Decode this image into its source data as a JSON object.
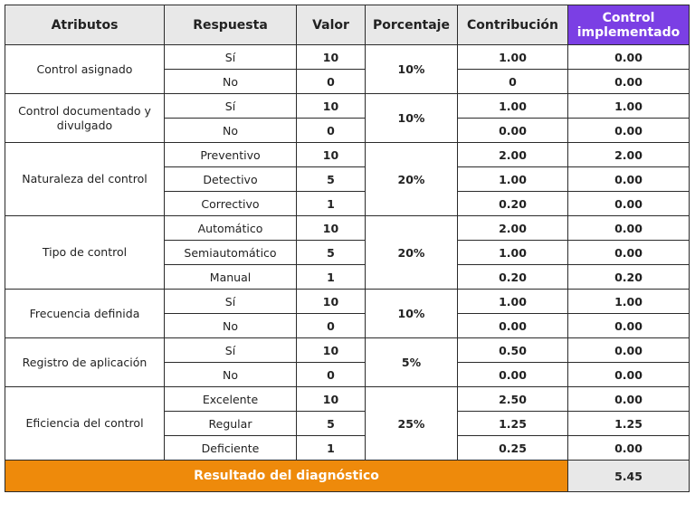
{
  "headers": {
    "attributes": "Atributos",
    "response": "Respuesta",
    "value": "Valor",
    "percentage": "Porcentaje",
    "contribution": "Contribución",
    "control_implemented": "Control implementado"
  },
  "groups": [
    {
      "attribute": "Control asignado",
      "percentage": "10%",
      "rows": [
        {
          "response": "Sí",
          "value": "10",
          "contribution": "1.00",
          "control": "0.00"
        },
        {
          "response": "No",
          "value": "0",
          "contribution": "0",
          "control": "0.00"
        }
      ]
    },
    {
      "attribute": "Control documentado y divulgado",
      "percentage": "10%",
      "rows": [
        {
          "response": "Sí",
          "value": "10",
          "contribution": "1.00",
          "control": "1.00"
        },
        {
          "response": "No",
          "value": "0",
          "contribution": "0.00",
          "control": "0.00"
        }
      ]
    },
    {
      "attribute": "Naturaleza del control",
      "percentage": "20%",
      "rows": [
        {
          "response": "Preventivo",
          "value": "10",
          "contribution": "2.00",
          "control": "2.00"
        },
        {
          "response": "Detectivo",
          "value": "5",
          "contribution": "1.00",
          "control": "0.00"
        },
        {
          "response": "Correctivo",
          "value": "1",
          "contribution": "0.20",
          "control": "0.00"
        }
      ]
    },
    {
      "attribute": "Tipo de control",
      "percentage": "20%",
      "rows": [
        {
          "response": "Automático",
          "value": "10",
          "contribution": "2.00",
          "control": "0.00"
        },
        {
          "response": "Semiautomático",
          "value": "5",
          "contribution": "1.00",
          "control": "0.00"
        },
        {
          "response": "Manual",
          "value": "1",
          "contribution": "0.20",
          "control": "0.20"
        }
      ]
    },
    {
      "attribute": "Frecuencia definida",
      "percentage": "10%",
      "rows": [
        {
          "response": "Sí",
          "value": "10",
          "contribution": "1.00",
          "control": "1.00"
        },
        {
          "response": "No",
          "value": "0",
          "contribution": "0.00",
          "control": "0.00"
        }
      ]
    },
    {
      "attribute": "Registro de aplicación",
      "percentage": "5%",
      "rows": [
        {
          "response": "Sí",
          "value": "10",
          "contribution": "0.50",
          "control": "0.00"
        },
        {
          "response": "No",
          "value": "0",
          "contribution": "0.00",
          "control": "0.00"
        }
      ]
    },
    {
      "attribute": "Eficiencia del control",
      "percentage": "25%",
      "rows": [
        {
          "response": "Excelente",
          "value": "10",
          "contribution": "2.50",
          "control": "0.00"
        },
        {
          "response": "Regular",
          "value": "5",
          "contribution": "1.25",
          "control": "1.25"
        },
        {
          "response": "Deficiente",
          "value": "1",
          "contribution": "0.25",
          "control": "0.00"
        }
      ]
    }
  ],
  "footer": {
    "label": "Resultado del diagnóstico",
    "value": "5.45"
  },
  "colors": {
    "header_bg": "#e8e8e8",
    "accent_purple": "#7b3fe4",
    "accent_orange": "#ee8a0b",
    "border": "#2b2b2b"
  }
}
